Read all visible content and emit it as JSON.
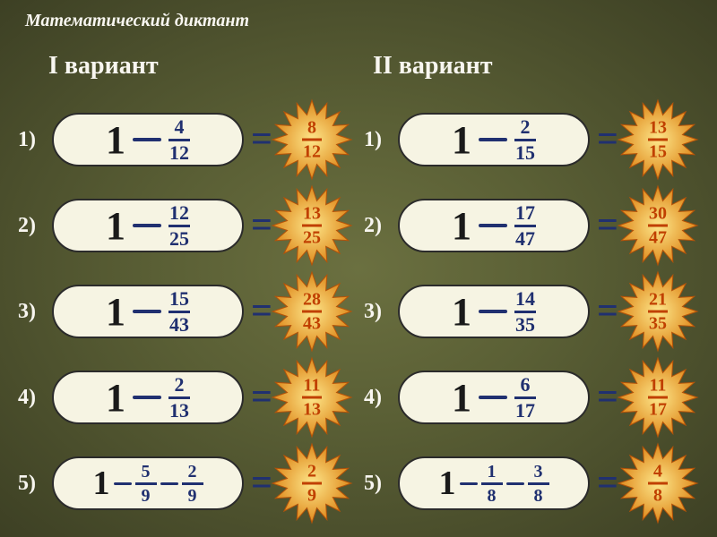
{
  "title": "Математический диктант",
  "variants": {
    "left": "I вариант",
    "right": "II вариант"
  },
  "colors": {
    "text_light": "#f8f6f0",
    "pill_bg": "#f6f4e3",
    "fraction": "#203070",
    "answer": "#c04000",
    "burst_outer": "#d97706",
    "burst_inner": "#fde68a"
  },
  "left": [
    {
      "n": "1)",
      "type": "single",
      "one": "1",
      "sub": {
        "num": "4",
        "den": "12"
      },
      "ans": {
        "num": "8",
        "den": "12"
      }
    },
    {
      "n": "2)",
      "type": "single",
      "one": "1",
      "sub": {
        "num": "12",
        "den": "25"
      },
      "ans": {
        "num": "13",
        "den": "25"
      }
    },
    {
      "n": "3)",
      "type": "single",
      "one": "1",
      "sub": {
        "num": "15",
        "den": "43"
      },
      "ans": {
        "num": "28",
        "den": "43"
      }
    },
    {
      "n": "4)",
      "type": "single",
      "one": "1",
      "sub": {
        "num": "2",
        "den": "13"
      },
      "ans": {
        "num": "11",
        "den": "13"
      }
    },
    {
      "n": "5)",
      "type": "double",
      "one": "1",
      "sub1": {
        "num": "5",
        "den": "9"
      },
      "sub2": {
        "num": "2",
        "den": "9"
      },
      "ans": {
        "num": "2",
        "den": "9"
      }
    }
  ],
  "right": [
    {
      "n": "1)",
      "type": "single",
      "one": "1",
      "sub": {
        "num": "2",
        "den": "15"
      },
      "ans": {
        "num": "13",
        "den": "15"
      }
    },
    {
      "n": "2)",
      "type": "single",
      "one": "1",
      "sub": {
        "num": "17",
        "den": "47"
      },
      "ans": {
        "num": "30",
        "den": "47"
      }
    },
    {
      "n": "3)",
      "type": "single",
      "one": "1",
      "sub": {
        "num": "14",
        "den": "35"
      },
      "ans": {
        "num": "21",
        "den": "35"
      }
    },
    {
      "n": "4)",
      "type": "single",
      "one": "1",
      "sub": {
        "num": "6",
        "den": "17"
      },
      "ans": {
        "num": "11",
        "den": "17"
      }
    },
    {
      "n": "5)",
      "type": "double",
      "one": "1",
      "sub1": {
        "num": "1",
        "den": "8"
      },
      "sub2": {
        "num": "3",
        "den": "8"
      },
      "ans": {
        "num": "4",
        "den": "8"
      }
    }
  ]
}
